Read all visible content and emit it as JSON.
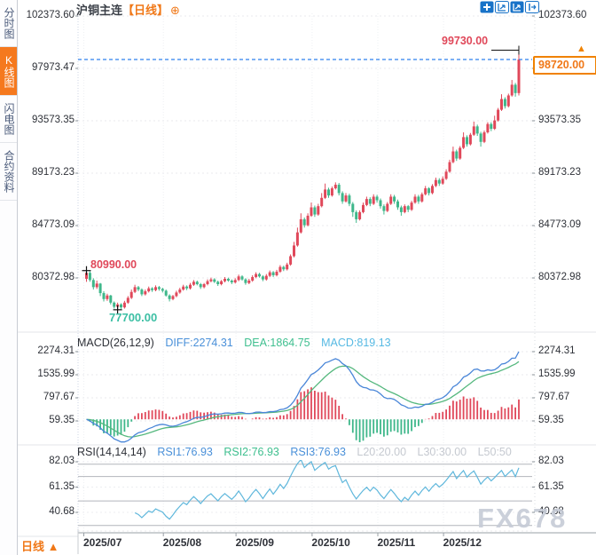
{
  "header": {
    "symbol": "沪铜主连",
    "period": "【日线】",
    "plus": "⊕"
  },
  "toolbar": {
    "icons": [
      {
        "name": "crosshair-icon"
      },
      {
        "name": "axis-zoom-icon"
      },
      {
        "name": "axis-zoom-active-icon"
      },
      {
        "name": "collapse-right-icon"
      }
    ]
  },
  "sidebar": {
    "items": [
      {
        "name": "time-chart",
        "label": "分时图",
        "selected": false
      },
      {
        "name": "kline-chart",
        "label": "K线图",
        "selected": true
      },
      {
        "name": "flash-chart",
        "label": "闪电图",
        "selected": false
      },
      {
        "name": "contract-info",
        "label": "合约资料",
        "selected": false
      }
    ]
  },
  "axis": {
    "price_ticks": [
      "102373.60",
      "97973.47",
      "93573.35",
      "89173.23",
      "84773.09",
      "80372.98"
    ],
    "macd_ticks": [
      "2274.31",
      "1535.99",
      "797.67",
      "59.35"
    ],
    "rsi_ticks": [
      "82.03",
      "61.35",
      "40.68"
    ],
    "dates": [
      "2025/07",
      "2025/08",
      "2025/09",
      "2025/10",
      "2025/11",
      "2025/12"
    ]
  },
  "macd_panel": {
    "title": "MACD(26,12,9)",
    "diff": "DIFF:2274.31",
    "dea": "DEA:1864.75",
    "macd": "MACD:819.13"
  },
  "rsi_panel": {
    "title": "RSI(14,14,14)",
    "rsi1": "RSI1:76.93",
    "rsi2": "RSI2:76.93",
    "rsi3": "RSI3:76.93",
    "l20": "L20:20.00",
    "l30": "L30:30.00",
    "l50": "L50:50"
  },
  "annotations": {
    "high": "99730.00",
    "low": "77700.00",
    "early_high": "80990.00",
    "last_price": "98720.00",
    "up_arrow": "▲"
  },
  "bottom_tab": {
    "label": "日线",
    "arrow": "▲"
  },
  "watermark": {
    "text": "FX678"
  },
  "colors": {
    "up": "#e0485a",
    "down": "#3eb78a",
    "accent_orange": "#f07818",
    "price_box_border": "#f08200",
    "icon_blue": "#1973c8",
    "diff_blue": "#4a86d8",
    "dea_green": "#55b87e",
    "macd_label_cyan": "#56b9e3",
    "rsi_line": "#5fb7dc",
    "ref_line_gray": "#b2b5bc",
    "last_price_line_blue": "#2f80ed",
    "low_label_teal": "#3cbfa4",
    "axis_text": "#2e3138",
    "watermark_gray": "#c6ccd7"
  },
  "chart_data": {
    "type": "candlestick",
    "symbol": "沪铜主连",
    "period": "日线",
    "title": "沪铜主连【日线】",
    "price_ticks": [
      102373.6,
      97973.47,
      93573.35,
      89173.23,
      84773.09,
      80372.98
    ],
    "last_price": 98720.0,
    "high_marker": {
      "index": 125,
      "price": 99730.0
    },
    "low_marker": {
      "index": 9,
      "price": 77700.0
    },
    "early_high_marker": {
      "index": 0,
      "price": 80990.0
    },
    "months": {
      "labels": [
        "2025/07",
        "2025/08",
        "2025/09",
        "2025/10",
        "2025/11",
        "2025/12"
      ],
      "start_indices": [
        0,
        23,
        44,
        66,
        85,
        104
      ]
    },
    "ohlc": [
      [
        80300,
        80990,
        80050,
        80800
      ],
      [
        80800,
        80950,
        80050,
        80200
      ],
      [
        80200,
        80350,
        79400,
        79600
      ],
      [
        79600,
        80150,
        79450,
        79900
      ],
      [
        79900,
        79950,
        78850,
        79100
      ],
      [
        79100,
        79250,
        78400,
        78600
      ],
      [
        78600,
        79050,
        78450,
        78900
      ],
      [
        78900,
        78950,
        78150,
        78300
      ],
      [
        78300,
        78400,
        77800,
        77950
      ],
      [
        77950,
        78300,
        77700,
        78150
      ],
      [
        78150,
        78250,
        77750,
        77900
      ],
      [
        77900,
        78450,
        77800,
        78300
      ],
      [
        78300,
        78850,
        78200,
        78700
      ],
      [
        78700,
        79400,
        78600,
        79200
      ],
      [
        79200,
        79800,
        79100,
        79600
      ],
      [
        79600,
        79700,
        79250,
        79400
      ],
      [
        79400,
        79500,
        78850,
        79000
      ],
      [
        79000,
        79400,
        78900,
        79250
      ],
      [
        79250,
        79650,
        79150,
        79500
      ],
      [
        79500,
        79600,
        79200,
        79350
      ],
      [
        79350,
        79750,
        79250,
        79600
      ],
      [
        79600,
        79700,
        79300,
        79450
      ],
      [
        79450,
        79550,
        79150,
        79300
      ],
      [
        79300,
        79400,
        78800,
        78900
      ],
      [
        78900,
        79000,
        78400,
        78600
      ],
      [
        78600,
        78950,
        78500,
        78850
      ],
      [
        78850,
        79300,
        78750,
        79150
      ],
      [
        79150,
        79550,
        79050,
        79400
      ],
      [
        79400,
        79800,
        79300,
        79650
      ],
      [
        79650,
        79750,
        79350,
        79500
      ],
      [
        79500,
        79950,
        79400,
        79800
      ],
      [
        79800,
        80200,
        79700,
        80050
      ],
      [
        80050,
        80150,
        79750,
        79850
      ],
      [
        79850,
        79950,
        79450,
        79600
      ],
      [
        79600,
        79950,
        79500,
        79850
      ],
      [
        79850,
        80250,
        79750,
        80100
      ],
      [
        80100,
        80400,
        80000,
        80250
      ],
      [
        80250,
        80350,
        79950,
        80050
      ],
      [
        80050,
        80150,
        79700,
        79850
      ],
      [
        79850,
        80200,
        79750,
        80100
      ],
      [
        80100,
        80450,
        80000,
        80300
      ],
      [
        80300,
        80400,
        80050,
        80150
      ],
      [
        80150,
        80250,
        79850,
        80000
      ],
      [
        80000,
        80350,
        79900,
        80200
      ],
      [
        80200,
        80650,
        80100,
        80500
      ],
      [
        80500,
        80600,
        80150,
        80250
      ],
      [
        80250,
        80350,
        79800,
        79950
      ],
      [
        79950,
        80300,
        79850,
        80150
      ],
      [
        80150,
        80600,
        80050,
        80450
      ],
      [
        80450,
        80850,
        80350,
        80700
      ],
      [
        80700,
        80800,
        80400,
        80500
      ],
      [
        80500,
        80600,
        80100,
        80250
      ],
      [
        80250,
        80700,
        80150,
        80550
      ],
      [
        80550,
        81000,
        80450,
        80850
      ],
      [
        80850,
        80950,
        80450,
        80600
      ],
      [
        80600,
        81050,
        80500,
        80900
      ],
      [
        80900,
        81450,
        80800,
        81300
      ],
      [
        81300,
        81400,
        80950,
        81100
      ],
      [
        81100,
        81650,
        81000,
        81500
      ],
      [
        81500,
        82350,
        81400,
        82200
      ],
      [
        82200,
        83400,
        82100,
        83100
      ],
      [
        83100,
        84600,
        83000,
        84200
      ],
      [
        84200,
        85800,
        84100,
        85300
      ],
      [
        85300,
        85450,
        84600,
        84800
      ],
      [
        84800,
        85800,
        84700,
        85600
      ],
      [
        85600,
        86700,
        85500,
        86300
      ],
      [
        86300,
        86450,
        85500,
        85700
      ],
      [
        85700,
        86600,
        85600,
        86400
      ],
      [
        86400,
        87500,
        86300,
        87100
      ],
      [
        87100,
        88300,
        87000,
        87800
      ],
      [
        87800,
        87950,
        87100,
        87300
      ],
      [
        87300,
        88050,
        87200,
        87900
      ],
      [
        87900,
        88400,
        87800,
        88200
      ],
      [
        88200,
        88350,
        87300,
        87500
      ],
      [
        87500,
        87650,
        86600,
        86800
      ],
      [
        86800,
        87500,
        86700,
        87300
      ],
      [
        87300,
        87450,
        86400,
        86600
      ],
      [
        86600,
        86750,
        85500,
        85900
      ],
      [
        85900,
        86050,
        85000,
        85300
      ],
      [
        85300,
        86050,
        85200,
        85900
      ],
      [
        85900,
        86700,
        85800,
        86500
      ],
      [
        86500,
        87200,
        86400,
        87000
      ],
      [
        87000,
        87150,
        86400,
        86600
      ],
      [
        86600,
        87400,
        86500,
        87200
      ],
      [
        87200,
        87350,
        86700,
        86900
      ],
      [
        86900,
        87050,
        86200,
        86400
      ],
      [
        86400,
        86550,
        85700,
        86000
      ],
      [
        86000,
        86750,
        85900,
        86600
      ],
      [
        86600,
        87400,
        86500,
        87200
      ],
      [
        87200,
        87350,
        86600,
        86800
      ],
      [
        86800,
        86950,
        86100,
        86300
      ],
      [
        86300,
        86450,
        85600,
        85900
      ],
      [
        85900,
        86550,
        85800,
        86400
      ],
      [
        86400,
        86500,
        85900,
        86100
      ],
      [
        86100,
        86850,
        86000,
        86700
      ],
      [
        86700,
        87400,
        86600,
        87200
      ],
      [
        87200,
        87350,
        86600,
        86800
      ],
      [
        86800,
        87550,
        86700,
        87400
      ],
      [
        87400,
        88100,
        87300,
        87900
      ],
      [
        87900,
        88000,
        87300,
        87500
      ],
      [
        87500,
        88250,
        87400,
        88100
      ],
      [
        88100,
        88800,
        88000,
        88600
      ],
      [
        88600,
        88750,
        88100,
        88300
      ],
      [
        88300,
        88900,
        88200,
        88700
      ],
      [
        88700,
        89500,
        88600,
        89300
      ],
      [
        89300,
        90300,
        89200,
        90100
      ],
      [
        90100,
        91400,
        90000,
        91000
      ],
      [
        91000,
        91150,
        90200,
        90400
      ],
      [
        90400,
        91450,
        90300,
        91300
      ],
      [
        91300,
        92600,
        91200,
        92200
      ],
      [
        92200,
        92350,
        91400,
        91600
      ],
      [
        91600,
        92550,
        91500,
        92400
      ],
      [
        92400,
        93500,
        92300,
        93100
      ],
      [
        93100,
        93250,
        92300,
        92500
      ],
      [
        92500,
        92650,
        91400,
        91800
      ],
      [
        91800,
        92750,
        91700,
        92600
      ],
      [
        92600,
        93450,
        92500,
        93300
      ],
      [
        93300,
        93450,
        92700,
        92900
      ],
      [
        92900,
        94000,
        92800,
        93600
      ],
      [
        93600,
        94650,
        93500,
        94500
      ],
      [
        94500,
        95800,
        94400,
        95400
      ],
      [
        95400,
        95550,
        94600,
        94800
      ],
      [
        94800,
        95850,
        94700,
        95700
      ],
      [
        95700,
        97000,
        95600,
        96600
      ],
      [
        96600,
        96750,
        95600,
        95900
      ],
      [
        95900,
        99730,
        95700,
        98720
      ]
    ],
    "macd": {
      "params": [
        26,
        12,
        9
      ],
      "diff": 2274.31,
      "dea": 1864.75,
      "macd": 819.13,
      "ticks": [
        2274.31,
        1535.99,
        797.67,
        59.35
      ]
    },
    "rsi": {
      "params": [
        14,
        14,
        14
      ],
      "rsi1": 76.93,
      "rsi2": 76.93,
      "rsi3": 76.93,
      "ticks": [
        82.03,
        61.35,
        40.68
      ],
      "ref_levels_labeled": [
        20,
        30,
        50
      ],
      "ref_lines_drawn": [
        80,
        70,
        50,
        30
      ]
    }
  }
}
